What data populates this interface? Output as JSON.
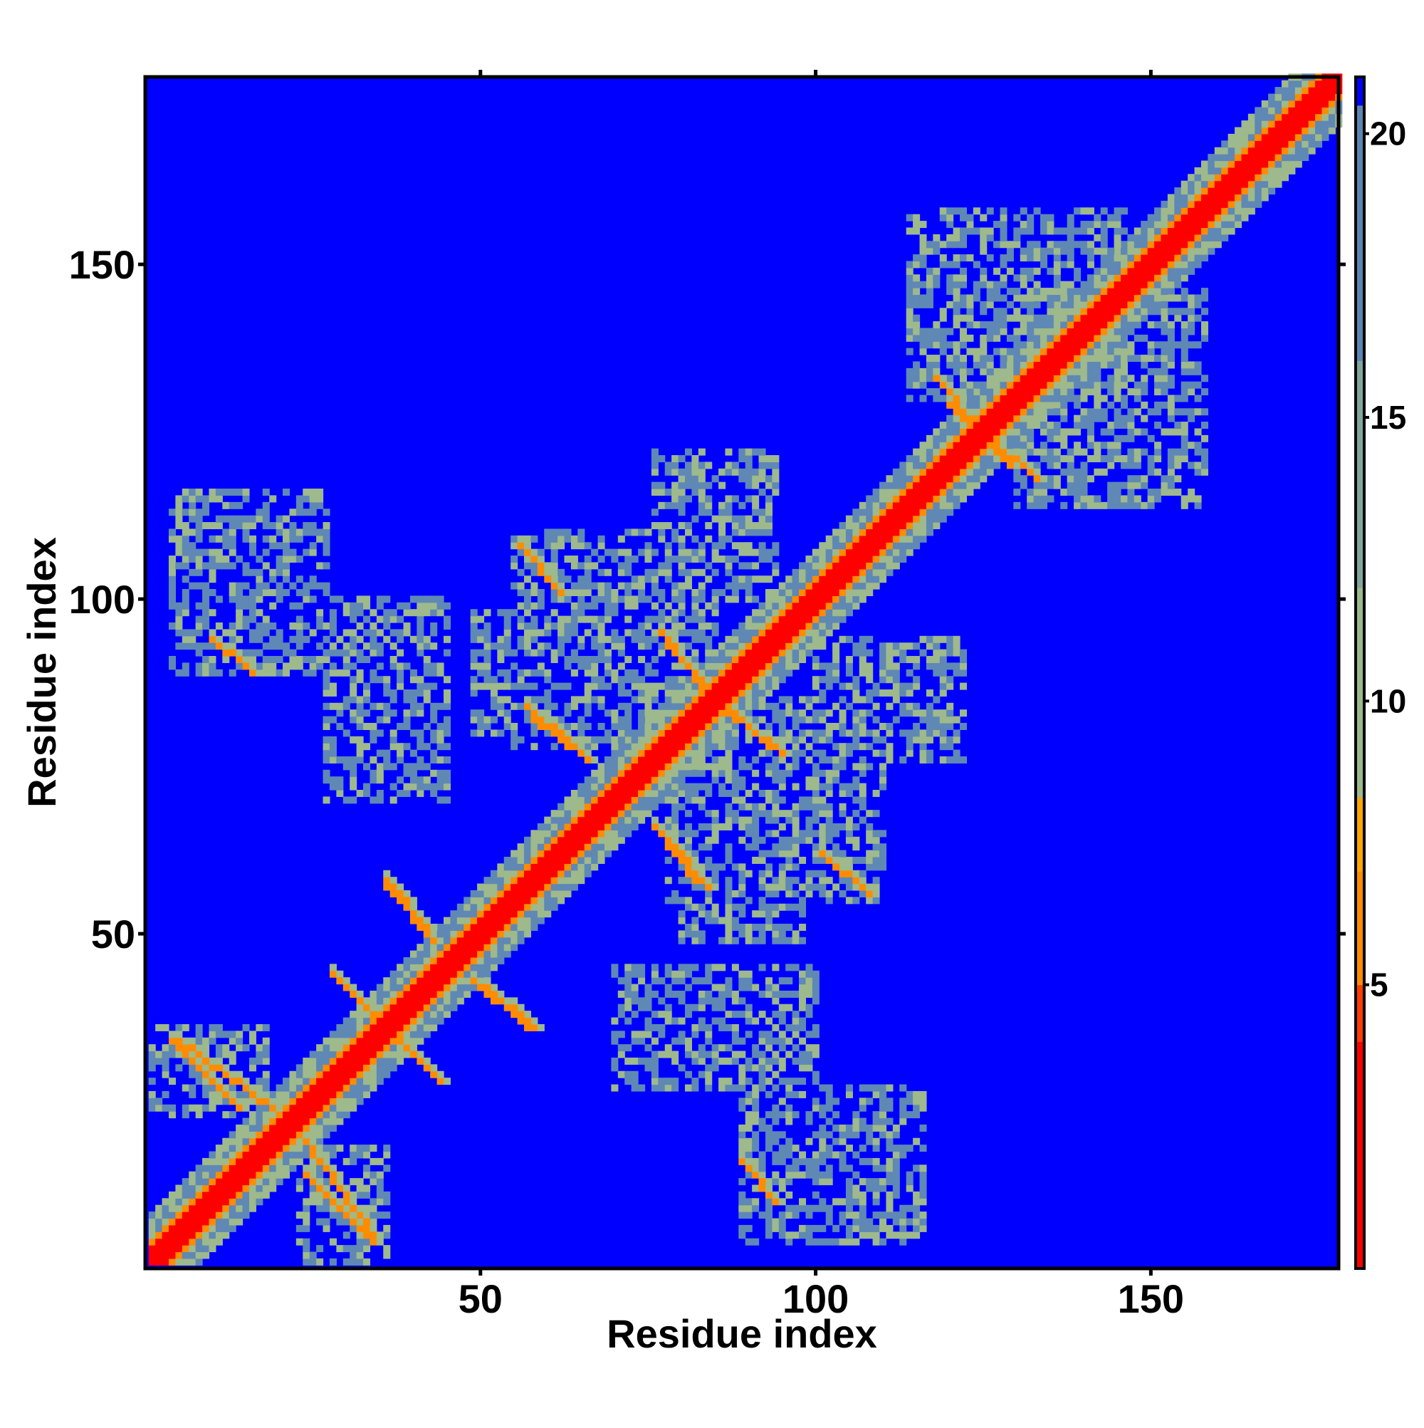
{
  "chart_data": {
    "type": "heatmap",
    "title": "",
    "xlabel": "Residue index",
    "ylabel": "Residue index",
    "n_residues": 178,
    "xlim": [
      1,
      178
    ],
    "ylim": [
      1,
      178
    ],
    "x_ticks": [
      50,
      100,
      150
    ],
    "y_ticks": [
      50,
      100,
      150
    ],
    "x_tick_labels": [
      "50",
      "100",
      "150"
    ],
    "y_tick_labels": [
      "50",
      "100",
      "150"
    ],
    "colorbar": {
      "range": [
        0,
        21
      ],
      "ticks": [
        5,
        10,
        15,
        20
      ],
      "tick_labels": [
        "5",
        "10",
        "15",
        "20"
      ],
      "colors": [
        "#ff0000",
        "#ff3c00",
        "#ff8c00",
        "#ffa500",
        "#9fb98a",
        "#7fa79e",
        "#5b86b4",
        "#0000ff"
      ]
    },
    "background_color": "#0000ff",
    "diagonal_color": "#ff0000",
    "contact_colors": {
      "near": "#ff9000",
      "mid": "#9eb98c",
      "far": "#5f88b4"
    },
    "contact_regions": [
      {
        "a": 1,
        "b": 18,
        "c": 23,
        "d": 36
      },
      {
        "a": 4,
        "b": 27,
        "c": 89,
        "d": 116
      },
      {
        "a": 27,
        "b": 45,
        "c": 70,
        "d": 100
      },
      {
        "a": 49,
        "b": 65,
        "c": 80,
        "d": 98
      },
      {
        "a": 55,
        "b": 85,
        "c": 78,
        "d": 110
      },
      {
        "a": 76,
        "b": 94,
        "c": 100,
        "d": 122
      },
      {
        "a": 114,
        "b": 146,
        "c": 130,
        "d": 158
      }
    ],
    "contact_strands": [
      {
        "x0": 4,
        "y0": 34,
        "x1": 14,
        "y1": 24,
        "v": 6
      },
      {
        "x0": 24,
        "y0": 19,
        "x1": 34,
        "y1": 5,
        "v": 6
      },
      {
        "x0": 28,
        "y0": 44,
        "x1": 37,
        "y1": 35,
        "v": 6
      },
      {
        "x0": 36,
        "y0": 58,
        "x1": 42,
        "y1": 51,
        "v": 6
      },
      {
        "x0": 49,
        "y0": 43,
        "x1": 57,
        "y1": 36,
        "v": 6
      },
      {
        "x0": 58,
        "y0": 82,
        "x1": 66,
        "y1": 76,
        "v": 6
      },
      {
        "x0": 77,
        "y0": 65,
        "x1": 84,
        "y1": 57,
        "v": 6
      },
      {
        "x0": 87,
        "y0": 83,
        "x1": 95,
        "y1": 77,
        "v": 6
      },
      {
        "x0": 78,
        "y0": 93,
        "x1": 87,
        "y1": 83,
        "v": 6
      },
      {
        "x0": 10,
        "y0": 94,
        "x1": 16,
        "y1": 89,
        "v": 6
      },
      {
        "x0": 89,
        "y0": 16,
        "x1": 94,
        "y1": 10,
        "v": 6
      },
      {
        "x0": 120,
        "y0": 129,
        "x1": 133,
        "y1": 118,
        "v": 6
      },
      {
        "x0": 101,
        "y0": 62,
        "x1": 108,
        "y1": 56,
        "v": 6
      }
    ]
  }
}
